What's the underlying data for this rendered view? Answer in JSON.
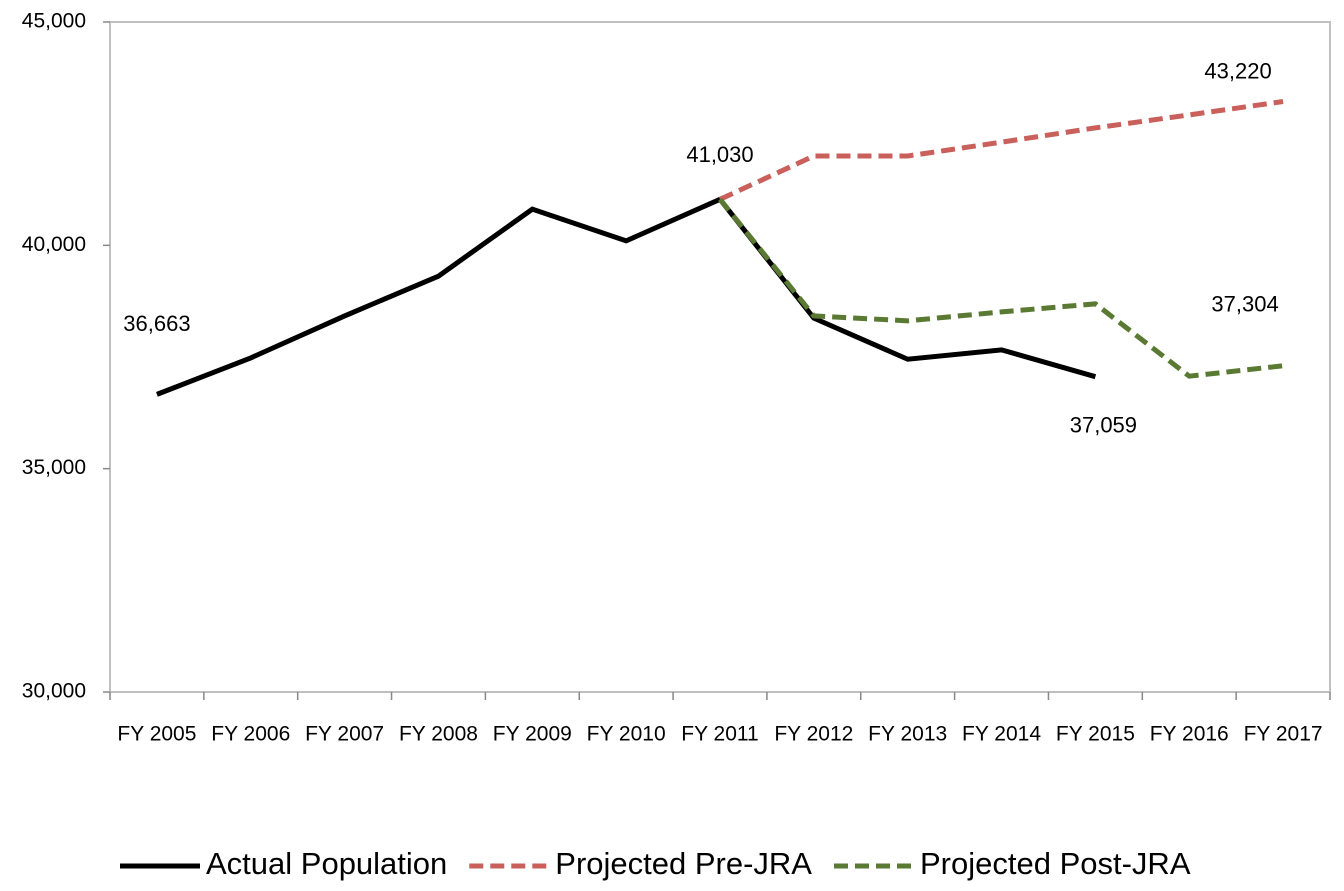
{
  "chart_data": {
    "type": "line",
    "categories": [
      "FY 2005",
      "FY 2006",
      "FY 2007",
      "FY 2008",
      "FY 2009",
      "FY 2010",
      "FY 2011",
      "FY 2012",
      "FY 2013",
      "FY 2014",
      "FY 2015",
      "FY 2016",
      "FY 2017"
    ],
    "series": [
      {
        "name": "Actual Population",
        "color": "#000000",
        "dash": false,
        "values": [
          36663,
          37480,
          38420,
          39310,
          40810,
          40100,
          41030,
          38370,
          37450,
          37660,
          37059,
          null,
          null
        ],
        "value_labels": [
          "36,663",
          null,
          null,
          null,
          null,
          null,
          "41,030",
          null,
          null,
          null,
          "37,059",
          null,
          null
        ]
      },
      {
        "name": "Projected Pre-JRA",
        "color": "#c9605c",
        "dash": true,
        "values": [
          null,
          null,
          null,
          null,
          null,
          null,
          41030,
          42000,
          42000,
          42310,
          42630,
          42920,
          43220
        ],
        "value_labels": [
          null,
          null,
          null,
          null,
          null,
          null,
          null,
          null,
          null,
          null,
          null,
          null,
          "43,220"
        ]
      },
      {
        "name": "Projected Post-JRA",
        "color": "#5a7a34",
        "dash": true,
        "values": [
          null,
          null,
          null,
          null,
          null,
          null,
          41030,
          38420,
          38310,
          38510,
          38690,
          37070,
          37304
        ],
        "value_labels": [
          null,
          null,
          null,
          null,
          null,
          null,
          null,
          null,
          null,
          null,
          null,
          null,
          "37,304"
        ]
      }
    ],
    "ylim": [
      30000,
      45000
    ],
    "yticks": [
      {
        "value": 30000,
        "label": "30,000"
      },
      {
        "value": 35000,
        "label": "35,000"
      },
      {
        "value": 40000,
        "label": "40,000"
      },
      {
        "value": 45000,
        "label": "45,000"
      }
    ],
    "legend": "bottom"
  }
}
